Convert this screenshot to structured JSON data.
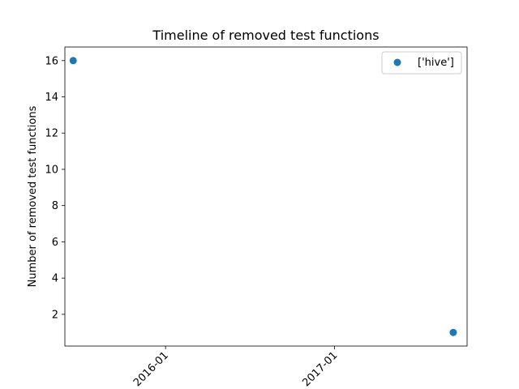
{
  "chart_data": {
    "type": "scatter",
    "title": "Timeline of removed test functions",
    "xlabel": "",
    "ylabel": "Number of removed test functions",
    "x_type": "date",
    "xlim": [
      "2015-05-28",
      "2017-10-15"
    ],
    "ylim": [
      0.25,
      16.75
    ],
    "x_ticks": [
      "2016-01",
      "2017-01"
    ],
    "y_ticks": [
      2,
      4,
      6,
      8,
      10,
      12,
      14,
      16
    ],
    "grid": false,
    "legend_position": "top-right",
    "series": [
      {
        "name": "['hive']",
        "color": "#1f77b4",
        "marker": "circle",
        "points": [
          {
            "x": "2015-06-15",
            "y": 16
          },
          {
            "x": "2017-09-15",
            "y": 1
          }
        ]
      }
    ]
  }
}
